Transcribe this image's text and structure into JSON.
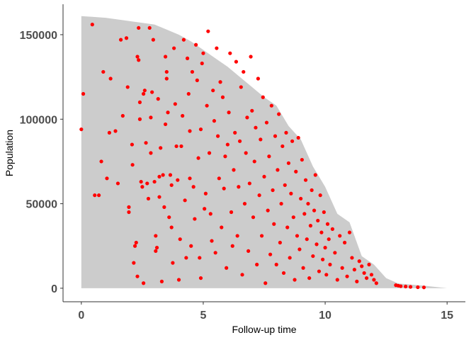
{
  "chart_data": {
    "type": "scatter",
    "title": "",
    "xlabel": "Follow-up time",
    "ylabel": "Population",
    "xlim": [
      -0.75,
      15.75
    ],
    "ylim": [
      -8000,
      168000
    ],
    "x_ticks": [
      0,
      5,
      10,
      15
    ],
    "y_ticks": [
      0,
      50000,
      100000,
      150000
    ],
    "x_tick_labels": [
      "0",
      "5",
      "10",
      "15"
    ],
    "y_tick_labels": [
      "0",
      "50000",
      "100000",
      "150000"
    ],
    "grid": false,
    "legend": "none",
    "area_color": "#cccccc",
    "point_color": "#ff0000",
    "population_at_risk": {
      "x": [
        0,
        1,
        2,
        3,
        3.5,
        4,
        4.5,
        5,
        5.5,
        6,
        6.5,
        7,
        7.5,
        8,
        8.5,
        9,
        9.5,
        10,
        10.5,
        11,
        11.5,
        12,
        12.5,
        13,
        14,
        15
      ],
      "y": [
        161000,
        160000,
        158000,
        156000,
        153000,
        150000,
        146000,
        141000,
        136000,
        131000,
        125000,
        119000,
        113000,
        108000,
        96000,
        88000,
        72000,
        60000,
        44000,
        39000,
        19000,
        14000,
        6000,
        2800,
        1600,
        0
      ]
    },
    "points": [
      [
        0.0,
        94000
      ],
      [
        0.08,
        115000
      ],
      [
        0.45,
        156000
      ],
      [
        0.55,
        55000
      ],
      [
        0.72,
        55000
      ],
      [
        0.82,
        75000
      ],
      [
        0.9,
        128000
      ],
      [
        1.05,
        65000
      ],
      [
        1.15,
        92000
      ],
      [
        1.2,
        124000
      ],
      [
        1.4,
        93000
      ],
      [
        1.5,
        62000
      ],
      [
        1.62,
        147000
      ],
      [
        1.7,
        102000
      ],
      [
        1.85,
        148000
      ],
      [
        1.9,
        119000
      ],
      [
        1.95,
        45000
      ],
      [
        1.95,
        48000
      ],
      [
        2.08,
        85000
      ],
      [
        2.1,
        73000
      ],
      [
        2.15,
        15000
      ],
      [
        2.2,
        25000
      ],
      [
        2.25,
        27000
      ],
      [
        2.3,
        7000
      ],
      [
        2.3,
        137000
      ],
      [
        2.35,
        135000
      ],
      [
        2.35,
        154000
      ],
      [
        2.4,
        110000
      ],
      [
        2.4,
        100000
      ],
      [
        2.45,
        63000
      ],
      [
        2.5,
        60000
      ],
      [
        2.55,
        3000
      ],
      [
        2.55,
        115000
      ],
      [
        2.6,
        117000
      ],
      [
        2.65,
        86000
      ],
      [
        2.7,
        62000
      ],
      [
        2.75,
        53000
      ],
      [
        2.8,
        154000
      ],
      [
        2.85,
        101000
      ],
      [
        2.85,
        80000
      ],
      [
        2.9,
        116000
      ],
      [
        2.95,
        147000
      ],
      [
        3.0,
        63000
      ],
      [
        3.05,
        31000
      ],
      [
        3.05,
        22000
      ],
      [
        3.1,
        24000
      ],
      [
        3.15,
        112000
      ],
      [
        3.2,
        66000
      ],
      [
        3.2,
        54000
      ],
      [
        3.25,
        83000
      ],
      [
        3.3,
        4000
      ],
      [
        3.35,
        67000
      ],
      [
        3.4,
        48000
      ],
      [
        3.45,
        137000
      ],
      [
        3.45,
        97000
      ],
      [
        3.5,
        128000
      ],
      [
        3.5,
        124000
      ],
      [
        3.55,
        104000
      ],
      [
        3.6,
        42000
      ],
      [
        3.65,
        67000
      ],
      [
        3.7,
        61000
      ],
      [
        3.7,
        36000
      ],
      [
        3.75,
        15000
      ],
      [
        3.8,
        142000
      ],
      [
        3.85,
        109000
      ],
      [
        3.9,
        84000
      ],
      [
        3.95,
        64000
      ],
      [
        4.0,
        5000
      ],
      [
        4.05,
        29000
      ],
      [
        4.1,
        84000
      ],
      [
        4.15,
        102000
      ],
      [
        4.2,
        147000
      ],
      [
        4.25,
        52000
      ],
      [
        4.3,
        18000
      ],
      [
        4.35,
        136000
      ],
      [
        4.4,
        115000
      ],
      [
        4.45,
        93000
      ],
      [
        4.45,
        65000
      ],
      [
        4.5,
        25000
      ],
      [
        4.55,
        128000
      ],
      [
        4.6,
        60000
      ],
      [
        4.65,
        41000
      ],
      [
        4.7,
        144000
      ],
      [
        4.75,
        123000
      ],
      [
        4.8,
        77000
      ],
      [
        4.85,
        18000
      ],
      [
        4.9,
        94000
      ],
      [
        4.9,
        6000
      ],
      [
        4.95,
        133000
      ],
      [
        5.0,
        139000
      ],
      [
        5.05,
        47000
      ],
      [
        5.1,
        56000
      ],
      [
        5.15,
        108000
      ],
      [
        5.2,
        152000
      ],
      [
        5.25,
        80000
      ],
      [
        5.3,
        44000
      ],
      [
        5.35,
        28000
      ],
      [
        5.4,
        117000
      ],
      [
        5.45,
        99000
      ],
      [
        5.5,
        21000
      ],
      [
        5.55,
        142000
      ],
      [
        5.6,
        90000
      ],
      [
        5.65,
        65000
      ],
      [
        5.7,
        122000
      ],
      [
        5.75,
        36000
      ],
      [
        5.8,
        113000
      ],
      [
        5.85,
        59000
      ],
      [
        5.9,
        78000
      ],
      [
        5.95,
        12000
      ],
      [
        6.0,
        85000
      ],
      [
        6.05,
        104000
      ],
      [
        6.1,
        139000
      ],
      [
        6.15,
        45000
      ],
      [
        6.2,
        25000
      ],
      [
        6.25,
        70000
      ],
      [
        6.3,
        92000
      ],
      [
        6.35,
        134000
      ],
      [
        6.4,
        31000
      ],
      [
        6.45,
        60000
      ],
      [
        6.5,
        87000
      ],
      [
        6.55,
        119000
      ],
      [
        6.6,
        8000
      ],
      [
        6.65,
        128000
      ],
      [
        6.7,
        50000
      ],
      [
        6.75,
        80000
      ],
      [
        6.8,
        101000
      ],
      [
        6.85,
        22000
      ],
      [
        6.9,
        62000
      ],
      [
        6.95,
        137000
      ],
      [
        7.0,
        105000
      ],
      [
        7.05,
        42000
      ],
      [
        7.1,
        75000
      ],
      [
        7.15,
        95000
      ],
      [
        7.2,
        14000
      ],
      [
        7.25,
        124000
      ],
      [
        7.3,
        55000
      ],
      [
        7.35,
        88000
      ],
      [
        7.4,
        31000
      ],
      [
        7.45,
        113000
      ],
      [
        7.5,
        66000
      ],
      [
        7.55,
        3000
      ],
      [
        7.6,
        98000
      ],
      [
        7.65,
        46000
      ],
      [
        7.7,
        78000
      ],
      [
        7.75,
        20000
      ],
      [
        7.8,
        108000
      ],
      [
        7.85,
        58000
      ],
      [
        7.9,
        38000
      ],
      [
        7.95,
        90000
      ],
      [
        8.0,
        14000
      ],
      [
        8.05,
        70000
      ],
      [
        8.1,
        103000
      ],
      [
        8.15,
        27000
      ],
      [
        8.2,
        50000
      ],
      [
        8.25,
        84000
      ],
      [
        8.3,
        9000
      ],
      [
        8.35,
        61000
      ],
      [
        8.4,
        92000
      ],
      [
        8.45,
        36000
      ],
      [
        8.5,
        74000
      ],
      [
        8.55,
        18000
      ],
      [
        8.6,
        56000
      ],
      [
        8.65,
        87000
      ],
      [
        8.7,
        42000
      ],
      [
        8.75,
        5000
      ],
      [
        8.8,
        69000
      ],
      [
        8.85,
        31000
      ],
      [
        8.9,
        89000
      ],
      [
        8.95,
        23000
      ],
      [
        9.0,
        53000
      ],
      [
        9.05,
        76000
      ],
      [
        9.1,
        12000
      ],
      [
        9.15,
        44000
      ],
      [
        9.2,
        64000
      ],
      [
        9.25,
        29000
      ],
      [
        9.3,
        50000
      ],
      [
        9.35,
        6000
      ],
      [
        9.4,
        37000
      ],
      [
        9.45,
        58000
      ],
      [
        9.5,
        19000
      ],
      [
        9.55,
        46000
      ],
      [
        9.6,
        67000
      ],
      [
        9.65,
        26000
      ],
      [
        9.7,
        40000
      ],
      [
        9.75,
        10000
      ],
      [
        9.8,
        55000
      ],
      [
        9.85,
        33000
      ],
      [
        9.9,
        17000
      ],
      [
        9.95,
        45000
      ],
      [
        10.0,
        24000
      ],
      [
        10.05,
        8000
      ],
      [
        10.1,
        38000
      ],
      [
        10.15,
        29000
      ],
      [
        10.2,
        14000
      ],
      [
        10.3,
        35000
      ],
      [
        10.4,
        21000
      ],
      [
        10.5,
        5000
      ],
      [
        10.6,
        31000
      ],
      [
        10.7,
        12000
      ],
      [
        10.8,
        27000
      ],
      [
        10.9,
        7000
      ],
      [
        11.0,
        33000
      ],
      [
        11.1,
        18000
      ],
      [
        11.2,
        11000
      ],
      [
        11.3,
        4000
      ],
      [
        11.4,
        16000
      ],
      [
        11.5,
        13000
      ],
      [
        11.6,
        9000
      ],
      [
        11.7,
        6000
      ],
      [
        11.8,
        14000
      ],
      [
        11.9,
        8000
      ],
      [
        12.0,
        5000
      ],
      [
        12.1,
        3000
      ],
      [
        12.9,
        1800
      ],
      [
        13.0,
        1500
      ],
      [
        13.1,
        1200
      ],
      [
        13.3,
        1000
      ],
      [
        13.5,
        800
      ],
      [
        13.8,
        600
      ],
      [
        14.05,
        500
      ]
    ]
  }
}
